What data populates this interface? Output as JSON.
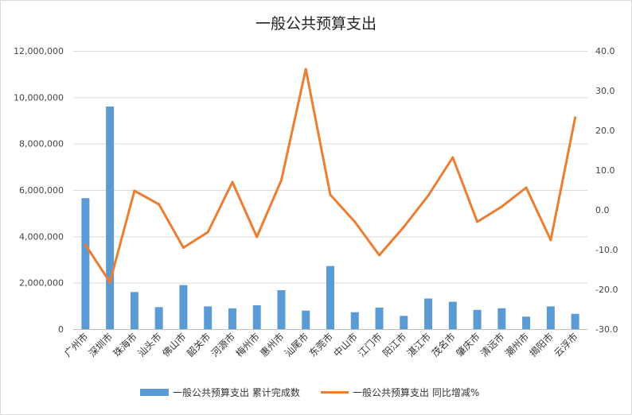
{
  "chart_data": {
    "type": "bar",
    "title": "一般公共预算支出",
    "categories": [
      "广州市",
      "深圳市",
      "珠海市",
      "汕头市",
      "佛山市",
      "韶关市",
      "河源市",
      "梅州市",
      "惠州市",
      "汕尾市",
      "东莞市",
      "中山市",
      "江门市",
      "阳江市",
      "湛江市",
      "茂名市",
      "肇庆市",
      "清远市",
      "潮州市",
      "揭阳市",
      "云浮市"
    ],
    "series": [
      {
        "name": "一般公共预算支出 累计完成数",
        "type": "bar",
        "axis": "left",
        "color": "#5B9BD5",
        "values": [
          5650000,
          9600000,
          1600000,
          950000,
          1900000,
          980000,
          900000,
          1030000,
          1680000,
          800000,
          2720000,
          730000,
          930000,
          570000,
          1320000,
          1180000,
          830000,
          900000,
          540000,
          980000,
          660000
        ]
      },
      {
        "name": "一般公共预算支出 同比增减%",
        "type": "line",
        "axis": "right",
        "color": "#ED7D31",
        "values": [
          -8.8,
          -18.2,
          4.8,
          1.4,
          -9.5,
          -5.6,
          7.0,
          -6.8,
          7.5,
          35.4,
          3.8,
          -3.0,
          -11.4,
          -4.3,
          3.6,
          13.2,
          -3.0,
          0.8,
          5.6,
          -7.6,
          23.2
        ]
      }
    ],
    "y_left": {
      "min": 0,
      "max": 12000000,
      "ticks": [
        "0",
        "2,000,000",
        "4,000,000",
        "6,000,000",
        "8,000,000",
        "10,000,000",
        "12,000,000"
      ],
      "tick_values": [
        0,
        2000000,
        4000000,
        6000000,
        8000000,
        10000000,
        12000000
      ]
    },
    "y_right": {
      "min": -30,
      "max": 40,
      "ticks": [
        "-30.0",
        "-20.0",
        "-10.0",
        "0.0",
        "10.0",
        "20.0",
        "30.0",
        "40.0"
      ],
      "tick_values": [
        -30,
        -20,
        -10,
        0,
        10,
        20,
        30,
        40
      ]
    },
    "grid": true,
    "legend_position": "bottom"
  }
}
